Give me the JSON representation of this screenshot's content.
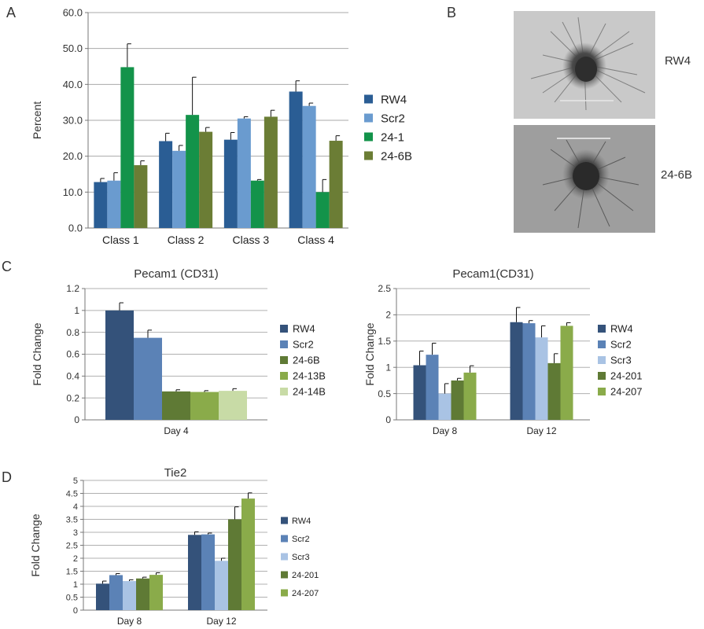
{
  "panels": {
    "A": "A",
    "B": "B",
    "C": "C",
    "D": "D"
  },
  "images": [
    {
      "label": "RW4",
      "description": "phase-contrast micrograph of a sprouting embryoid body",
      "has_scale_bar": true
    },
    {
      "label": "24-6B",
      "description": "phase-contrast micrograph of a sprouting embryoid body",
      "has_scale_bar": true
    }
  ],
  "colors": {
    "RW4": "#2a5d94",
    "Scr2": "#6a9bcf",
    "24-1": "#13934a",
    "24-6B_A": "#6b7d35",
    "C_RW4": "#34527a",
    "C_Scr2": "#5b82b6",
    "C_24-6B": "#5f7a35",
    "C_24-13B": "#8aab4a",
    "C_24-14B": "#c8dba6",
    "C_Scr3": "#a9c3e4",
    "C_24-201": "#5f7a35",
    "C_24-207": "#8aab4a"
  },
  "chart_data": [
    {
      "type": "bar",
      "panel": "A",
      "title": "",
      "xlabel": "",
      "ylabel": "Percent",
      "ylim": [
        0,
        60
      ],
      "yticks": [
        "0.0",
        "10.0",
        "20.0",
        "30.0",
        "40.0",
        "50.0",
        "60.0"
      ],
      "grid": true,
      "legend": "right",
      "categories": [
        "Class 1",
        "Class 2",
        "Class 3",
        "Class 4"
      ],
      "series": [
        {
          "name": "RW4",
          "values": [
            12.8,
            24.2,
            24.6,
            38.0
          ],
          "errors": [
            1.0,
            2.2,
            2.0,
            3.0
          ],
          "color": "#2a5d94"
        },
        {
          "name": "Scr2",
          "values": [
            13.2,
            21.5,
            30.5,
            34.0
          ],
          "errors": [
            2.2,
            1.5,
            0.5,
            0.8
          ],
          "color": "#6a9bcf"
        },
        {
          "name": "24-1",
          "values": [
            44.8,
            31.5,
            13.2,
            10.0
          ],
          "errors": [
            6.5,
            10.5,
            0.3,
            3.5
          ],
          "color": "#13934a"
        },
        {
          "name": "24-6B",
          "values": [
            17.5,
            26.8,
            31.0,
            24.3
          ],
          "errors": [
            1.2,
            1.2,
            1.8,
            1.4
          ],
          "color": "#6b7d35"
        }
      ]
    },
    {
      "type": "bar",
      "panel": "C-left",
      "title": "Pecam1 (CD31)",
      "xlabel": "",
      "ylabel": "Fold Change",
      "ylim": [
        0,
        1.2
      ],
      "yticks": [
        "0",
        "0.2",
        "0.4",
        "0.6",
        "0.8",
        "1",
        "1.2"
      ],
      "grid": true,
      "legend": "right",
      "categories": [
        "Day 4"
      ],
      "series": [
        {
          "name": "RW4",
          "values": [
            1.0
          ],
          "errors": [
            0.07
          ],
          "color": "#34527a"
        },
        {
          "name": "Scr2",
          "values": [
            0.75
          ],
          "errors": [
            0.07
          ],
          "color": "#5b82b6"
        },
        {
          "name": "24-6B",
          "values": [
            0.26
          ],
          "errors": [
            0.015
          ],
          "color": "#5f7a35"
        },
        {
          "name": "24-13B",
          "values": [
            0.255
          ],
          "errors": [
            0.012
          ],
          "color": "#8aab4a"
        },
        {
          "name": "24-14B",
          "values": [
            0.265
          ],
          "errors": [
            0.02
          ],
          "color": "#c8dba6"
        }
      ]
    },
    {
      "type": "bar",
      "panel": "C-right",
      "title": "Pecam1(CD31)",
      "xlabel": "",
      "ylabel": "Fold Change",
      "ylim": [
        0,
        2.5
      ],
      "yticks": [
        "0",
        "0.5",
        "1",
        "1.5",
        "2",
        "2.5"
      ],
      "grid": true,
      "legend": "right",
      "categories": [
        "Day 8",
        "Day 12"
      ],
      "series": [
        {
          "name": "RW4",
          "values": [
            1.04,
            1.86
          ],
          "errors": [
            0.27,
            0.28
          ],
          "color": "#34527a"
        },
        {
          "name": "Scr2",
          "values": [
            1.24,
            1.84
          ],
          "errors": [
            0.22,
            0.05
          ],
          "color": "#5b82b6"
        },
        {
          "name": "Scr3",
          "values": [
            0.5,
            1.57
          ],
          "errors": [
            0.19,
            0.22
          ],
          "color": "#a9c3e4"
        },
        {
          "name": "24-201",
          "values": [
            0.75,
            1.08
          ],
          "errors": [
            0.04,
            0.18
          ],
          "color": "#5f7a35"
        },
        {
          "name": "24-207",
          "values": [
            0.9,
            1.79
          ],
          "errors": [
            0.13,
            0.06
          ],
          "color": "#8aab4a"
        }
      ]
    },
    {
      "type": "bar",
      "panel": "D",
      "title": "Tie2",
      "xlabel": "",
      "ylabel": "Fold Change",
      "ylim": [
        0,
        5
      ],
      "yticks": [
        "0",
        "0.5",
        "1",
        "1.5",
        "2",
        "2.5",
        "3",
        "3.5",
        "4",
        "4.5",
        "5"
      ],
      "grid": true,
      "legend": "right",
      "categories": [
        "Day 8",
        "Day 12"
      ],
      "series": [
        {
          "name": "RW4",
          "values": [
            1.02,
            2.9
          ],
          "errors": [
            0.1,
            0.12
          ],
          "color": "#34527a"
        },
        {
          "name": "Scr2",
          "values": [
            1.35,
            2.92
          ],
          "errors": [
            0.06,
            0.05
          ],
          "color": "#5b82b6"
        },
        {
          "name": "Scr3",
          "values": [
            1.12,
            1.9
          ],
          "errors": [
            0.05,
            0.1
          ],
          "color": "#a9c3e4"
        },
        {
          "name": "24-201",
          "values": [
            1.22,
            3.5
          ],
          "errors": [
            0.05,
            0.48
          ],
          "color": "#5f7a35"
        },
        {
          "name": "24-207",
          "values": [
            1.36,
            4.3
          ],
          "errors": [
            0.08,
            0.22
          ],
          "color": "#8aab4a"
        }
      ]
    }
  ]
}
